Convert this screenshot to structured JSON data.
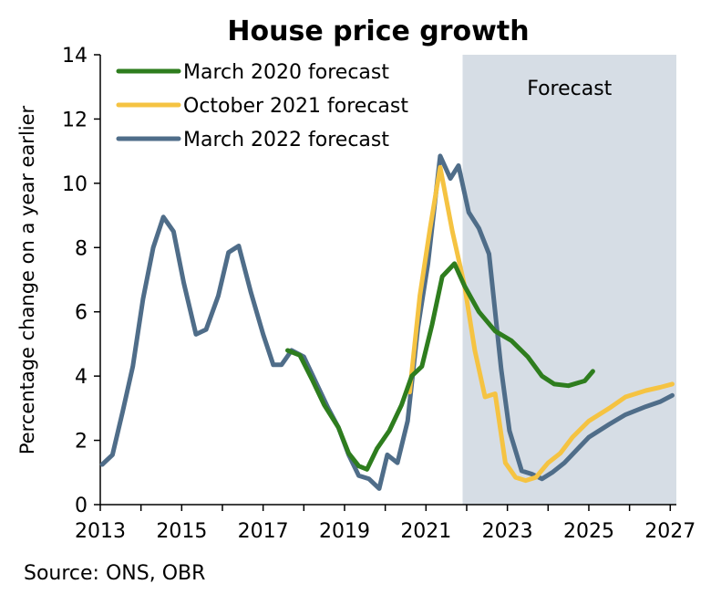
{
  "chart_data": {
    "type": "line",
    "title": "House price growth",
    "ylabel": "Percentage change on a year earlier",
    "xlabel": "",
    "xlim": [
      2013,
      2027.15
    ],
    "ylim": [
      0,
      14
    ],
    "x_ticks": [
      "2013",
      "2015",
      "2017",
      "2019",
      "2021",
      "2023",
      "2025",
      "2027"
    ],
    "y_ticks": [
      "0",
      "2",
      "4",
      "6",
      "8",
      "10",
      "12",
      "14"
    ],
    "shaded_region": {
      "label": "Forecast",
      "x_start": 2021.9,
      "x_end": 2027.15,
      "color": "#d6dde5"
    },
    "legend_position": "top-left",
    "series": [
      {
        "name": "March 2020 forecast",
        "color": "#2e7d1e",
        "points": [
          [
            2017.6,
            4.8
          ],
          [
            2017.9,
            4.65
          ],
          [
            2018.2,
            3.9
          ],
          [
            2018.5,
            3.1
          ],
          [
            2018.85,
            2.4
          ],
          [
            2019.1,
            1.6
          ],
          [
            2019.35,
            1.2
          ],
          [
            2019.55,
            1.1
          ],
          [
            2019.8,
            1.75
          ],
          [
            2020.1,
            2.3
          ],
          [
            2020.4,
            3.1
          ],
          [
            2020.65,
            4.0
          ],
          [
            2020.9,
            4.3
          ],
          [
            2021.15,
            5.6
          ],
          [
            2021.4,
            7.1
          ],
          [
            2021.7,
            7.5
          ],
          [
            2021.95,
            6.8
          ],
          [
            2022.3,
            6.0
          ],
          [
            2022.7,
            5.4
          ],
          [
            2023.1,
            5.1
          ],
          [
            2023.5,
            4.6
          ],
          [
            2023.85,
            4.0
          ],
          [
            2024.15,
            3.75
          ],
          [
            2024.5,
            3.7
          ],
          [
            2024.9,
            3.85
          ],
          [
            2025.1,
            4.15
          ]
        ]
      },
      {
        "name": "October 2021 forecast",
        "color": "#f5c342",
        "points": [
          [
            2020.6,
            3.5
          ],
          [
            2020.85,
            6.5
          ],
          [
            2021.1,
            8.6
          ],
          [
            2021.35,
            10.5
          ],
          [
            2021.65,
            8.5
          ],
          [
            2021.95,
            6.8
          ],
          [
            2022.2,
            4.8
          ],
          [
            2022.45,
            3.35
          ],
          [
            2022.7,
            3.45
          ],
          [
            2022.95,
            1.3
          ],
          [
            2023.2,
            0.85
          ],
          [
            2023.45,
            0.75
          ],
          [
            2023.7,
            0.85
          ],
          [
            2024.0,
            1.3
          ],
          [
            2024.3,
            1.6
          ],
          [
            2024.6,
            2.1
          ],
          [
            2025.0,
            2.6
          ],
          [
            2025.5,
            3.0
          ],
          [
            2025.9,
            3.35
          ],
          [
            2026.4,
            3.55
          ],
          [
            2026.75,
            3.65
          ],
          [
            2027.05,
            3.75
          ]
        ]
      },
      {
        "name": "March 2022 forecast",
        "color": "#4f6d89",
        "points": [
          [
            2013.05,
            1.25
          ],
          [
            2013.3,
            1.55
          ],
          [
            2013.55,
            2.9
          ],
          [
            2013.8,
            4.3
          ],
          [
            2014.05,
            6.4
          ],
          [
            2014.3,
            8.0
          ],
          [
            2014.55,
            8.95
          ],
          [
            2014.8,
            8.5
          ],
          [
            2015.05,
            6.9
          ],
          [
            2015.35,
            5.3
          ],
          [
            2015.6,
            5.45
          ],
          [
            2015.9,
            6.5
          ],
          [
            2016.15,
            7.85
          ],
          [
            2016.4,
            8.05
          ],
          [
            2016.7,
            6.6
          ],
          [
            2017.0,
            5.3
          ],
          [
            2017.25,
            4.35
          ],
          [
            2017.45,
            4.35
          ],
          [
            2017.7,
            4.8
          ],
          [
            2018.0,
            4.6
          ],
          [
            2018.3,
            3.8
          ],
          [
            2018.6,
            3.0
          ],
          [
            2018.85,
            2.4
          ],
          [
            2019.1,
            1.55
          ],
          [
            2019.35,
            0.9
          ],
          [
            2019.6,
            0.8
          ],
          [
            2019.85,
            0.5
          ],
          [
            2020.05,
            1.55
          ],
          [
            2020.3,
            1.3
          ],
          [
            2020.55,
            2.6
          ],
          [
            2020.8,
            5.5
          ],
          [
            2021.05,
            7.5
          ],
          [
            2021.35,
            10.85
          ],
          [
            2021.6,
            10.15
          ],
          [
            2021.8,
            10.55
          ],
          [
            2022.05,
            9.1
          ],
          [
            2022.3,
            8.6
          ],
          [
            2022.55,
            7.8
          ],
          [
            2022.85,
            4.2
          ],
          [
            2023.05,
            2.3
          ],
          [
            2023.35,
            1.05
          ],
          [
            2023.6,
            0.95
          ],
          [
            2023.85,
            0.8
          ],
          [
            2024.1,
            1.0
          ],
          [
            2024.4,
            1.3
          ],
          [
            2024.7,
            1.7
          ],
          [
            2025.0,
            2.1
          ],
          [
            2025.5,
            2.5
          ],
          [
            2025.9,
            2.8
          ],
          [
            2026.4,
            3.05
          ],
          [
            2026.75,
            3.2
          ],
          [
            2027.05,
            3.4
          ]
        ]
      }
    ],
    "source": "Source: ONS, OBR"
  }
}
